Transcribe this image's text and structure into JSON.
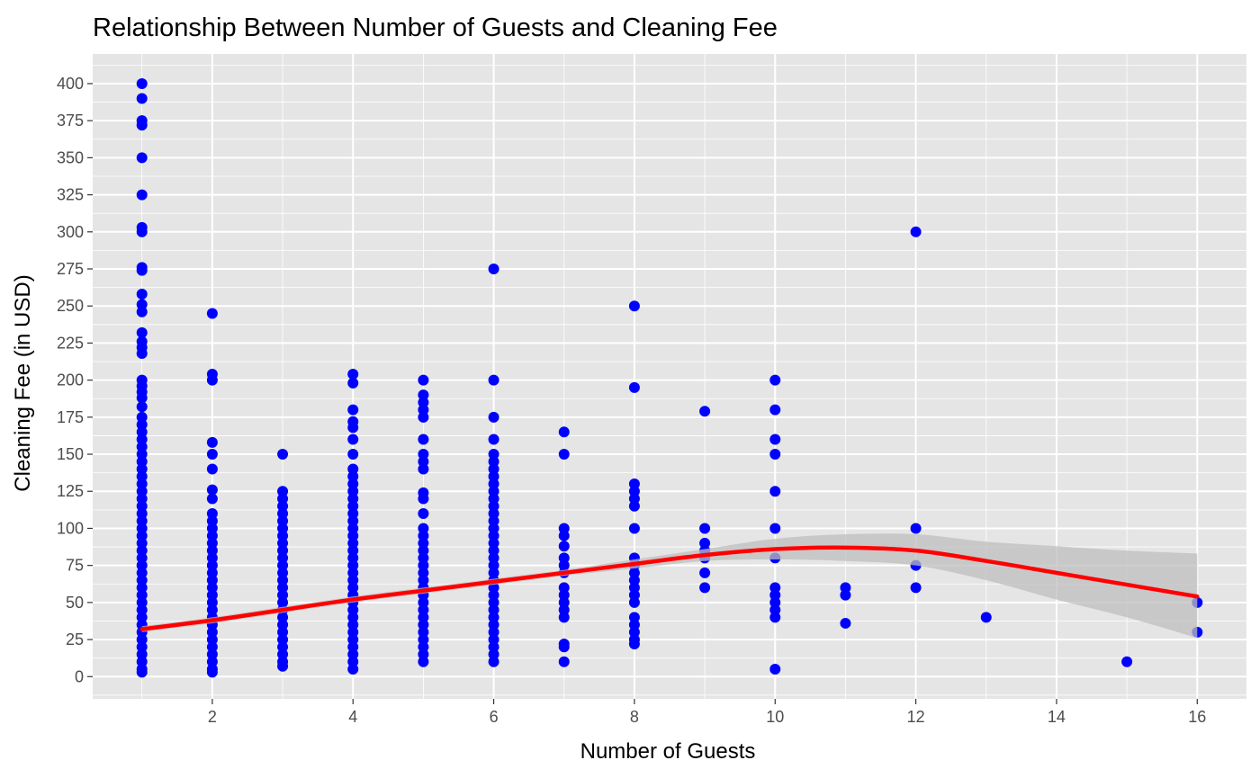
{
  "chart_data": {
    "type": "scatter",
    "title": "Relationship Between Number of Guests and Cleaning Fee",
    "xlabel": "Number of Guests",
    "ylabel": "Cleaning Fee (in USD)",
    "xlim": [
      0.3,
      16.7
    ],
    "ylim": [
      -15,
      420
    ],
    "x_ticks": [
      2,
      4,
      6,
      8,
      10,
      12,
      14,
      16
    ],
    "y_ticks": [
      0,
      25,
      50,
      75,
      100,
      125,
      150,
      175,
      200,
      225,
      250,
      275,
      300,
      325,
      350,
      375,
      400
    ],
    "grid": true,
    "point_color": "#0000ff",
    "background_color": "#e5e5e5",
    "grid_color": "#ffffff",
    "points": [
      [
        1,
        400
      ],
      [
        1,
        390
      ],
      [
        1,
        375
      ],
      [
        1,
        372
      ],
      [
        1,
        350
      ],
      [
        1,
        325
      ],
      [
        1,
        303
      ],
      [
        1,
        300
      ],
      [
        1,
        276
      ],
      [
        1,
        274
      ],
      [
        1,
        258
      ],
      [
        1,
        251
      ],
      [
        1,
        246
      ],
      [
        1,
        232
      ],
      [
        1,
        226
      ],
      [
        1,
        222
      ],
      [
        1,
        218
      ],
      [
        1,
        200
      ],
      [
        1,
        196
      ],
      [
        1,
        192
      ],
      [
        1,
        188
      ],
      [
        1,
        182
      ],
      [
        1,
        175
      ],
      [
        1,
        170
      ],
      [
        1,
        165
      ],
      [
        1,
        160
      ],
      [
        1,
        155
      ],
      [
        1,
        150
      ],
      [
        1,
        145
      ],
      [
        1,
        140
      ],
      [
        1,
        135
      ],
      [
        1,
        130
      ],
      [
        1,
        125
      ],
      [
        1,
        120
      ],
      [
        1,
        115
      ],
      [
        1,
        110
      ],
      [
        1,
        105
      ],
      [
        1,
        100
      ],
      [
        1,
        95
      ],
      [
        1,
        90
      ],
      [
        1,
        85
      ],
      [
        1,
        80
      ],
      [
        1,
        75
      ],
      [
        1,
        70
      ],
      [
        1,
        65
      ],
      [
        1,
        60
      ],
      [
        1,
        55
      ],
      [
        1,
        50
      ],
      [
        1,
        45
      ],
      [
        1,
        40
      ],
      [
        1,
        35
      ],
      [
        1,
        30
      ],
      [
        1,
        25
      ],
      [
        1,
        20
      ],
      [
        1,
        15
      ],
      [
        1,
        10
      ],
      [
        1,
        5
      ],
      [
        1,
        3
      ],
      [
        2,
        245
      ],
      [
        2,
        204
      ],
      [
        2,
        200
      ],
      [
        2,
        158
      ],
      [
        2,
        150
      ],
      [
        2,
        140
      ],
      [
        2,
        126
      ],
      [
        2,
        120
      ],
      [
        2,
        110
      ],
      [
        2,
        105
      ],
      [
        2,
        100
      ],
      [
        2,
        95
      ],
      [
        2,
        90
      ],
      [
        2,
        85
      ],
      [
        2,
        80
      ],
      [
        2,
        75
      ],
      [
        2,
        70
      ],
      [
        2,
        65
      ],
      [
        2,
        60
      ],
      [
        2,
        55
      ],
      [
        2,
        50
      ],
      [
        2,
        45
      ],
      [
        2,
        40
      ],
      [
        2,
        35
      ],
      [
        2,
        30
      ],
      [
        2,
        25
      ],
      [
        2,
        20
      ],
      [
        2,
        15
      ],
      [
        2,
        10
      ],
      [
        2,
        5
      ],
      [
        2,
        3
      ],
      [
        3,
        150
      ],
      [
        3,
        125
      ],
      [
        3,
        120
      ],
      [
        3,
        115
      ],
      [
        3,
        110
      ],
      [
        3,
        105
      ],
      [
        3,
        100
      ],
      [
        3,
        95
      ],
      [
        3,
        90
      ],
      [
        3,
        85
      ],
      [
        3,
        80
      ],
      [
        3,
        75
      ],
      [
        3,
        70
      ],
      [
        3,
        65
      ],
      [
        3,
        60
      ],
      [
        3,
        55
      ],
      [
        3,
        50
      ],
      [
        3,
        45
      ],
      [
        3,
        40
      ],
      [
        3,
        35
      ],
      [
        3,
        30
      ],
      [
        3,
        25
      ],
      [
        3,
        20
      ],
      [
        3,
        15
      ],
      [
        3,
        10
      ],
      [
        3,
        7
      ],
      [
        4,
        204
      ],
      [
        4,
        198
      ],
      [
        4,
        180
      ],
      [
        4,
        172
      ],
      [
        4,
        168
      ],
      [
        4,
        160
      ],
      [
        4,
        150
      ],
      [
        4,
        140
      ],
      [
        4,
        135
      ],
      [
        4,
        130
      ],
      [
        4,
        125
      ],
      [
        4,
        120
      ],
      [
        4,
        115
      ],
      [
        4,
        110
      ],
      [
        4,
        105
      ],
      [
        4,
        100
      ],
      [
        4,
        95
      ],
      [
        4,
        90
      ],
      [
        4,
        85
      ],
      [
        4,
        80
      ],
      [
        4,
        75
      ],
      [
        4,
        70
      ],
      [
        4,
        65
      ],
      [
        4,
        60
      ],
      [
        4,
        55
      ],
      [
        4,
        50
      ],
      [
        4,
        45
      ],
      [
        4,
        40
      ],
      [
        4,
        35
      ],
      [
        4,
        30
      ],
      [
        4,
        25
      ],
      [
        4,
        20
      ],
      [
        4,
        15
      ],
      [
        4,
        10
      ],
      [
        4,
        5
      ],
      [
        5,
        200
      ],
      [
        5,
        190
      ],
      [
        5,
        185
      ],
      [
        5,
        180
      ],
      [
        5,
        175
      ],
      [
        5,
        160
      ],
      [
        5,
        150
      ],
      [
        5,
        145
      ],
      [
        5,
        140
      ],
      [
        5,
        124
      ],
      [
        5,
        120
      ],
      [
        5,
        110
      ],
      [
        5,
        100
      ],
      [
        5,
        95
      ],
      [
        5,
        90
      ],
      [
        5,
        85
      ],
      [
        5,
        80
      ],
      [
        5,
        75
      ],
      [
        5,
        70
      ],
      [
        5,
        65
      ],
      [
        5,
        60
      ],
      [
        5,
        55
      ],
      [
        5,
        50
      ],
      [
        5,
        45
      ],
      [
        5,
        40
      ],
      [
        5,
        35
      ],
      [
        5,
        30
      ],
      [
        5,
        25
      ],
      [
        5,
        20
      ],
      [
        5,
        15
      ],
      [
        5,
        10
      ],
      [
        6,
        275
      ],
      [
        6,
        200
      ],
      [
        6,
        175
      ],
      [
        6,
        160
      ],
      [
        6,
        150
      ],
      [
        6,
        145
      ],
      [
        6,
        140
      ],
      [
        6,
        135
      ],
      [
        6,
        130
      ],
      [
        6,
        125
      ],
      [
        6,
        120
      ],
      [
        6,
        115
      ],
      [
        6,
        110
      ],
      [
        6,
        105
      ],
      [
        6,
        100
      ],
      [
        6,
        95
      ],
      [
        6,
        90
      ],
      [
        6,
        85
      ],
      [
        6,
        80
      ],
      [
        6,
        75
      ],
      [
        6,
        70
      ],
      [
        6,
        65
      ],
      [
        6,
        60
      ],
      [
        6,
        55
      ],
      [
        6,
        50
      ],
      [
        6,
        45
      ],
      [
        6,
        40
      ],
      [
        6,
        35
      ],
      [
        6,
        30
      ],
      [
        6,
        25
      ],
      [
        6,
        20
      ],
      [
        6,
        15
      ],
      [
        6,
        10
      ],
      [
        7,
        165
      ],
      [
        7,
        150
      ],
      [
        7,
        100
      ],
      [
        7,
        95
      ],
      [
        7,
        88
      ],
      [
        7,
        80
      ],
      [
        7,
        75
      ],
      [
        7,
        70
      ],
      [
        7,
        60
      ],
      [
        7,
        55
      ],
      [
        7,
        50
      ],
      [
        7,
        45
      ],
      [
        7,
        40
      ],
      [
        7,
        22
      ],
      [
        7,
        20
      ],
      [
        7,
        10
      ],
      [
        8,
        250
      ],
      [
        8,
        195
      ],
      [
        8,
        130
      ],
      [
        8,
        125
      ],
      [
        8,
        120
      ],
      [
        8,
        115
      ],
      [
        8,
        100
      ],
      [
        8,
        80
      ],
      [
        8,
        75
      ],
      [
        8,
        70
      ],
      [
        8,
        65
      ],
      [
        8,
        60
      ],
      [
        8,
        55
      ],
      [
        8,
        50
      ],
      [
        8,
        40
      ],
      [
        8,
        35
      ],
      [
        8,
        30
      ],
      [
        8,
        25
      ],
      [
        8,
        22
      ],
      [
        9,
        179
      ],
      [
        9,
        100
      ],
      [
        9,
        90
      ],
      [
        9,
        85
      ],
      [
        9,
        80
      ],
      [
        9,
        70
      ],
      [
        9,
        60
      ],
      [
        10,
        200
      ],
      [
        10,
        180
      ],
      [
        10,
        160
      ],
      [
        10,
        150
      ],
      [
        10,
        125
      ],
      [
        10,
        100
      ],
      [
        10,
        80
      ],
      [
        10,
        60
      ],
      [
        10,
        55
      ],
      [
        10,
        50
      ],
      [
        10,
        45
      ],
      [
        10,
        40
      ],
      [
        10,
        5
      ],
      [
        11,
        60
      ],
      [
        11,
        55
      ],
      [
        11,
        36
      ],
      [
        12,
        300
      ],
      [
        12,
        100
      ],
      [
        12,
        75
      ],
      [
        12,
        60
      ],
      [
        13,
        40
      ],
      [
        15,
        10
      ],
      [
        16,
        50
      ],
      [
        16,
        30
      ]
    ],
    "smooth": {
      "color": "#ff0000",
      "band_color": "#bdbdbd",
      "x": [
        1,
        2,
        3,
        4,
        5,
        6,
        7,
        8,
        9,
        10,
        11,
        12,
        13,
        14,
        15,
        16
      ],
      "y": [
        32,
        38,
        45,
        52,
        58,
        64,
        70,
        76,
        82,
        86,
        87,
        85,
        78,
        70,
        62,
        54
      ],
      "lower": [
        30,
        36,
        43,
        50,
        56,
        62,
        68,
        73,
        78,
        79,
        78,
        75,
        65,
        52,
        40,
        26
      ],
      "upper": [
        34,
        40,
        47,
        54,
        60,
        66,
        72,
        79,
        86,
        93,
        96,
        96,
        91,
        88,
        85,
        83
      ]
    }
  }
}
